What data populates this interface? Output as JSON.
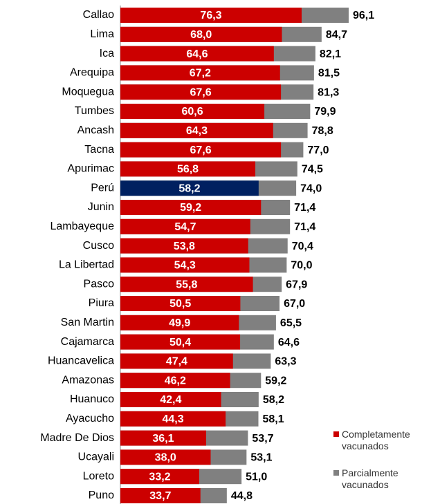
{
  "chart_data": {
    "type": "bar",
    "orientation": "horizontal",
    "overlap": true,
    "legend": "bottom-right",
    "categories": [
      "Callao",
      "Lima",
      "Ica",
      "Arequipa",
      "Moquegua",
      "Tumbes",
      "Ancash",
      "Tacna",
      "Apurimac",
      "Perú",
      "Junin",
      "Lambayeque",
      "Cusco",
      "La Libertad",
      "Pasco",
      "Piura",
      "San Martin",
      "Cajamarca",
      "Huancavelica",
      "Amazonas",
      "Huanuco",
      "Ayacucho",
      "Madre De Dios",
      "Ucayali",
      "Loreto",
      "Puno"
    ],
    "series": [
      {
        "name": "Parcialmente vacunados",
        "color": "#808080",
        "values": [
          96.1,
          84.7,
          82.1,
          81.5,
          81.3,
          79.9,
          78.8,
          77.0,
          74.5,
          74.0,
          71.4,
          71.4,
          70.4,
          70.0,
          67.9,
          67.0,
          65.5,
          64.6,
          63.3,
          59.2,
          58.2,
          58.1,
          53.7,
          53.1,
          51.0,
          44.8
        ],
        "value_labels": [
          "96,1",
          "84,7",
          "82,1",
          "81,5",
          "81,3",
          "79,9",
          "78,8",
          "77,0",
          "74,5",
          "74,0",
          "71,4",
          "71,4",
          "70,4",
          "70,0",
          "67,9",
          "67,0",
          "65,5",
          "64,6",
          "63,3",
          "59,2",
          "58,2",
          "58,1",
          "53,7",
          "53,1",
          "51,0",
          "44,8"
        ]
      },
      {
        "name": "Completamente vacunados",
        "color": "#cc0000",
        "point_colors": [
          "#cc0000",
          "#cc0000",
          "#cc0000",
          "#cc0000",
          "#cc0000",
          "#cc0000",
          "#cc0000",
          "#cc0000",
          "#cc0000",
          "#002060",
          "#cc0000",
          "#cc0000",
          "#cc0000",
          "#cc0000",
          "#cc0000",
          "#cc0000",
          "#cc0000",
          "#cc0000",
          "#cc0000",
          "#cc0000",
          "#cc0000",
          "#cc0000",
          "#cc0000",
          "#cc0000",
          "#cc0000",
          "#cc0000"
        ],
        "values": [
          76.3,
          68.0,
          64.6,
          67.2,
          67.6,
          60.6,
          64.3,
          67.6,
          56.8,
          58.2,
          59.2,
          54.7,
          53.8,
          54.3,
          55.8,
          50.5,
          49.9,
          50.4,
          47.4,
          46.2,
          42.4,
          44.3,
          36.1,
          38.0,
          33.2,
          33.7
        ],
        "value_labels": [
          "76,3",
          "68,0",
          "64,6",
          "67,2",
          "67,6",
          "60,6",
          "64,3",
          "67,6",
          "56,8",
          "58,2",
          "59,2",
          "54,7",
          "53,8",
          "54,3",
          "55,8",
          "50,5",
          "49,9",
          "50,4",
          "47,4",
          "46,2",
          "42,4",
          "44,3",
          "36,1",
          "38,0",
          "33,2",
          "33,7"
        ]
      }
    ]
  }
}
